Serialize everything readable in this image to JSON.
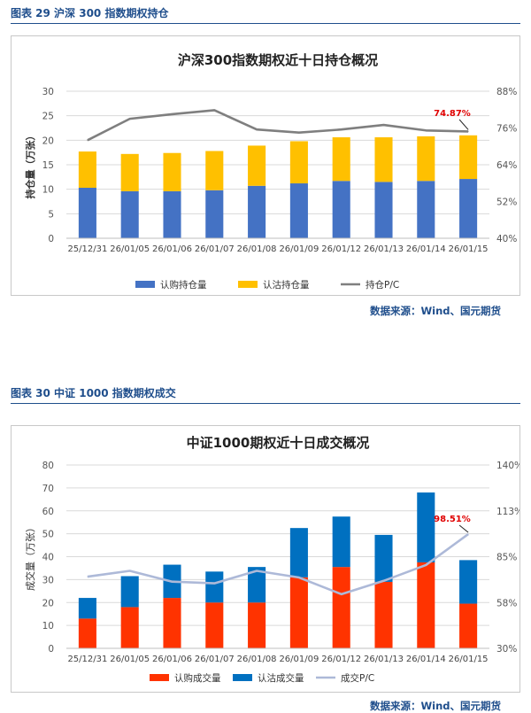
{
  "figures": [
    {
      "caption": "图表 29  沪深 300 指数期权持仓",
      "source": "数据来源：Wind、国元期货",
      "chart_data": {
        "type": "bar",
        "stacked": true,
        "title": "沪深300指数期权近十日持仓概况",
        "ylabel": "持仓量（万张）",
        "categories": [
          "25/12/31",
          "26/01/05",
          "26/01/06",
          "26/01/07",
          "26/01/08",
          "26/01/09",
          "26/01/12",
          "26/01/13",
          "26/01/14",
          "26/01/15"
        ],
        "ylim": [
          0,
          30
        ],
        "yticks": [
          0,
          5,
          10,
          15,
          20,
          25,
          30
        ],
        "y2lim": [
          40,
          88
        ],
        "y2ticks": [
          "40%",
          "52%",
          "64%",
          "76%",
          "88%"
        ],
        "series": [
          {
            "name": "认购持仓量",
            "type": "bar",
            "color": "#4472c4",
            "values": [
              10.3,
              9.6,
              9.6,
              9.8,
              10.7,
              11.2,
              11.7,
              11.5,
              11.7,
              12.1
            ]
          },
          {
            "name": "认沽持仓量",
            "type": "bar",
            "color": "#ffc000",
            "values": [
              7.4,
              7.6,
              7.8,
              8.0,
              8.2,
              8.6,
              8.9,
              9.1,
              9.1,
              8.9
            ]
          },
          {
            "name": "持仓P/C",
            "type": "line",
            "axis": "right",
            "color": "#7f7f7f",
            "values": [
              72.0,
              79.0,
              80.5,
              81.8,
              75.5,
              74.5,
              75.5,
              77.0,
              75.2,
              74.87
            ]
          }
        ],
        "annotation": "74.87%",
        "grid": true,
        "legend": "bottom"
      }
    },
    {
      "caption": "图表 30  中证 1000 指数期权成交",
      "source": "数据来源：Wind、国元期货",
      "chart_data": {
        "type": "bar",
        "stacked": true,
        "title": "中证1000期权近十日成交概况",
        "ylabel": "成交量（万张）",
        "categories": [
          "25/12/31",
          "26/01/05",
          "26/01/06",
          "26/01/07",
          "26/01/08",
          "26/01/09",
          "26/01/12",
          "26/01/13",
          "26/01/14",
          "26/01/15"
        ],
        "ylim": [
          0,
          80
        ],
        "yticks": [
          0,
          10,
          20,
          30,
          40,
          50,
          60,
          70,
          80
        ],
        "y2lim": [
          30,
          140
        ],
        "y2ticks": [
          "30%",
          "58%",
          "85%",
          "113%",
          "140%"
        ],
        "series": [
          {
            "name": "认购成交量",
            "type": "bar",
            "color": "#ff3300",
            "values": [
              13,
              18,
              22,
              20,
              20,
              31,
              35.5,
              29,
              37.5,
              19.5
            ]
          },
          {
            "name": "认沽成交量",
            "type": "bar",
            "color": "#0070c0",
            "values": [
              9,
              13.5,
              14.5,
              13.5,
              15.5,
              21.5,
              22,
              20.5,
              30.5,
              19
            ]
          },
          {
            "name": "成交P/C",
            "type": "line",
            "axis": "right",
            "color": "#adb9d8",
            "values": [
              73,
              76.5,
              70,
              69,
              76.5,
              72.5,
              62.5,
              70.5,
              80,
              98.51
            ]
          }
        ],
        "annotation": "98.51%",
        "grid": true,
        "legend": "bottom"
      }
    }
  ]
}
